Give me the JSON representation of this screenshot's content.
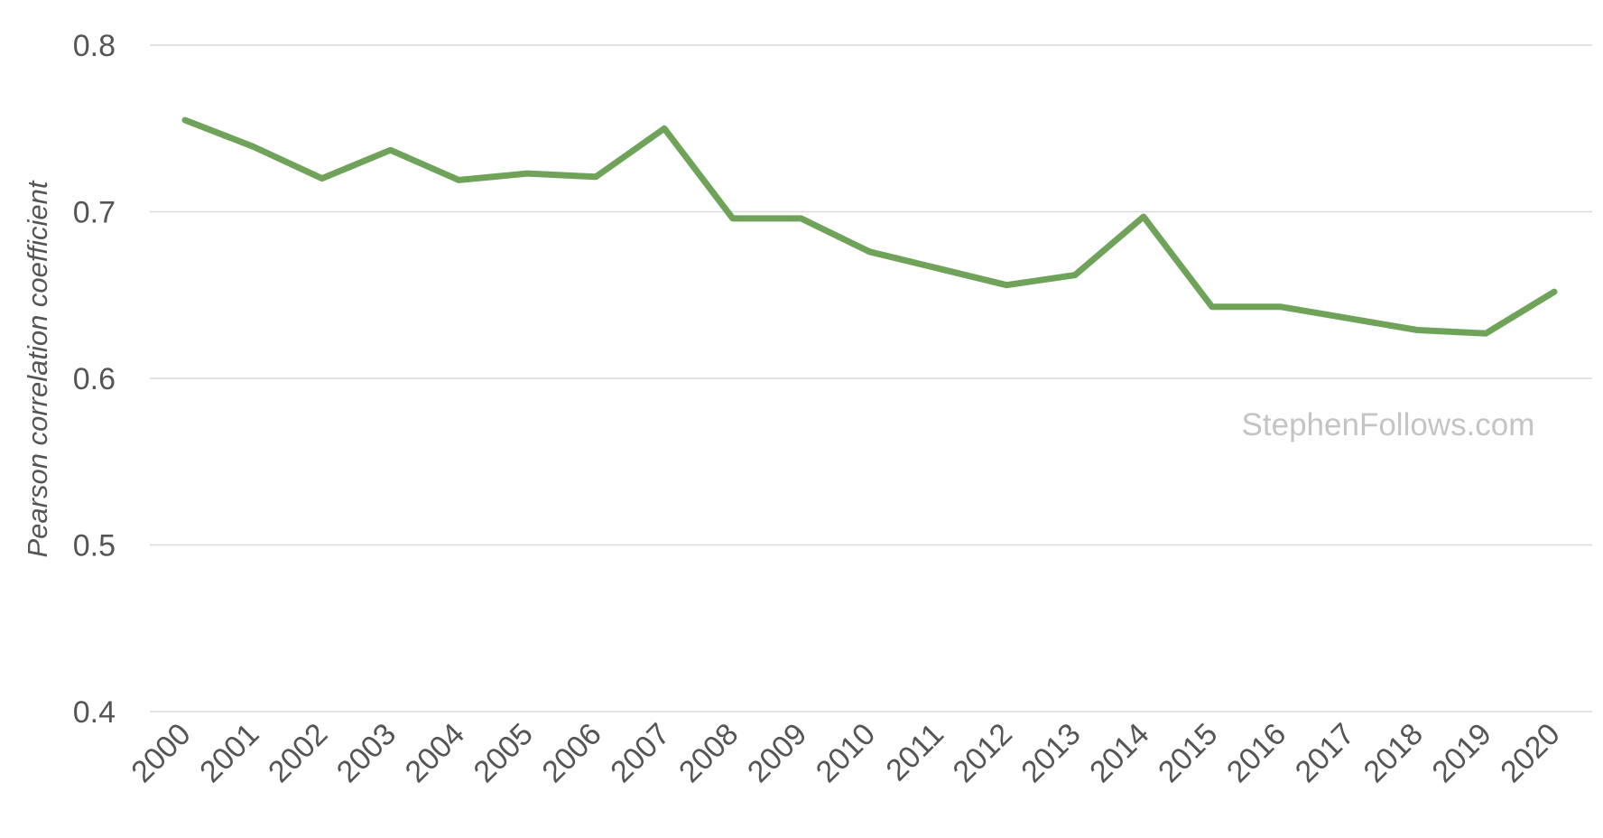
{
  "chart_data": {
    "type": "line",
    "title": "",
    "xlabel": "",
    "ylabel": "Pearson correlation coefficient",
    "ylim": [
      0.4,
      0.8
    ],
    "yticks": [
      "0.4",
      "0.5",
      "0.6",
      "0.7",
      "0.8"
    ],
    "grid": true,
    "legend": "none",
    "categories": [
      "2000",
      "2001",
      "2002",
      "2003",
      "2004",
      "2005",
      "2006",
      "2007",
      "2008",
      "2009",
      "2010",
      "2011",
      "2012",
      "2013",
      "2014",
      "2015",
      "2016",
      "2017",
      "2018",
      "2019",
      "2020"
    ],
    "series": [
      {
        "color": "#6fa35a",
        "values": [
          0.755,
          0.739,
          0.72,
          0.737,
          0.719,
          0.723,
          0.721,
          0.75,
          0.696,
          0.696,
          0.676,
          0.666,
          0.656,
          0.662,
          0.697,
          0.643,
          0.643,
          0.636,
          0.629,
          0.627,
          0.652
        ]
      }
    ],
    "watermark": "StephenFollows.com"
  }
}
